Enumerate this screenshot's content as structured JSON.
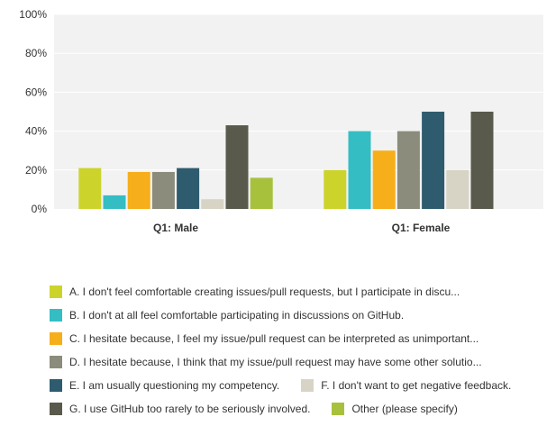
{
  "chart_data": {
    "type": "bar",
    "categories": [
      "Q1: Male",
      "Q1: Female"
    ],
    "series": [
      {
        "name": "A. I don't feel comfortable creating issues/pull requests, but I participate in discu...",
        "values": [
          21,
          20
        ],
        "color": "#ccd42c"
      },
      {
        "name": "B. I don't at all feel comfortable participating in discussions on GitHub.",
        "values": [
          7,
          40
        ],
        "color": "#34bec4"
      },
      {
        "name": "C. I hesitate because, I feel my issue/pull request can be interpreted as unimportant...",
        "values": [
          19,
          30
        ],
        "color": "#f6ae1b"
      },
      {
        "name": "D. I hesitate because, I think that my issue/pull request may have some other solutio...",
        "values": [
          19,
          40
        ],
        "color": "#8c8c7c"
      },
      {
        "name": "E. I am usually questioning my competency.",
        "values": [
          21,
          50
        ],
        "color": "#2e5c6e"
      },
      {
        "name": "F. I don't want to get negative feedback.",
        "values": [
          5,
          20
        ],
        "color": "#d7d4c6"
      },
      {
        "name": "G. I use GitHub too rarely to be seriously involved.",
        "values": [
          43,
          50
        ],
        "color": "#5a5a4c"
      },
      {
        "name": "Other (please specify)",
        "values": [
          16,
          null
        ],
        "color": "#a8c13c"
      }
    ],
    "yticks": [
      "0%",
      "20%",
      "40%",
      "60%",
      "80%",
      "100%"
    ],
    "ylim": [
      0,
      100
    ],
    "grid": true,
    "legend_position": "bottom"
  },
  "colors": {
    "plot_background": "#f2f2f2",
    "gridline": "#ffffff",
    "axis_text": "#333333"
  }
}
